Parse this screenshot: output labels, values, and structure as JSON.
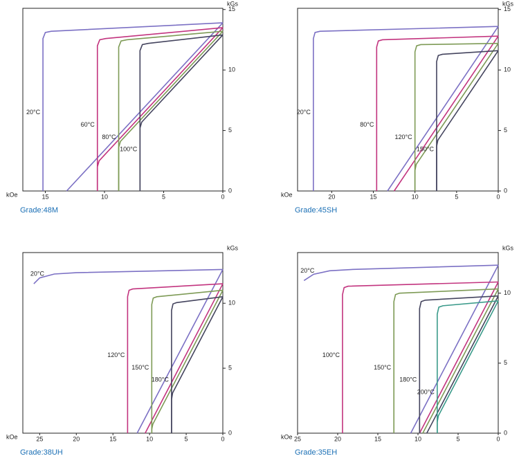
{
  "chart_data": [
    {
      "type": "line",
      "title": "Grade:48M",
      "x_label": "kOe",
      "y_label": "kGs",
      "xlim": [
        16.9,
        0
      ],
      "ylim": [
        0,
        15.1
      ],
      "xticks": [
        15,
        10,
        5,
        0
      ],
      "yticks": [
        0,
        5,
        10,
        15
      ],
      "series": [
        {
          "name": "20°C",
          "color": "#7b70c4",
          "x": [
            15.2,
            15.2,
            15.0,
            14.5,
            0
          ],
          "values": [
            0,
            12.6,
            13.1,
            13.2,
            13.9
          ],
          "b_x": [
            13.2,
            0
          ],
          "b_values": [
            0,
            13.9
          ]
        },
        {
          "name": "60°C",
          "color": "#c2337e",
          "x": [
            10.6,
            10.6,
            10.4,
            9.9,
            0
          ],
          "values": [
            0,
            12.0,
            12.5,
            12.6,
            13.5
          ],
          "b_x": [
            10.6,
            10.6,
            10.45,
            0
          ],
          "b_values": [
            0,
            2.0,
            2.5,
            13.5
          ]
        },
        {
          "name": "80°C",
          "color": "#7d9a55",
          "x": [
            8.8,
            8.8,
            8.6,
            8.1,
            0
          ],
          "values": [
            0,
            11.9,
            12.4,
            12.5,
            13.2
          ],
          "b_x": [
            8.8,
            8.8,
            8.65,
            0
          ],
          "b_values": [
            0,
            3.6,
            4.1,
            13.2
          ]
        },
        {
          "name": "100°C",
          "color": "#44445e",
          "x": [
            7.0,
            7.0,
            6.8,
            6.3,
            0
          ],
          "values": [
            0,
            11.6,
            12.1,
            12.2,
            12.9
          ],
          "b_x": [
            7.0,
            7.0,
            6.85,
            0
          ],
          "b_values": [
            0,
            5.2,
            5.7,
            12.9
          ]
        }
      ]
    },
    {
      "type": "line",
      "title": "Grade:45SH",
      "x_label": "kOe",
      "y_label": "kGs",
      "xlim": [
        24.1,
        0
      ],
      "ylim": [
        0,
        15.1
      ],
      "xticks": [
        20,
        15,
        10,
        5,
        0
      ],
      "yticks": [
        0,
        5,
        10,
        15
      ],
      "series": [
        {
          "name": "20°C",
          "color": "#7b70c4",
          "x": [
            22.2,
            22.2,
            22.0,
            21.4,
            0
          ],
          "values": [
            0,
            12.6,
            13.1,
            13.2,
            13.6
          ],
          "b_x": [
            13.3,
            0
          ],
          "b_values": [
            0,
            13.6
          ]
        },
        {
          "name": "80°C",
          "color": "#c2337e",
          "x": [
            14.6,
            14.6,
            14.4,
            13.9,
            0
          ],
          "values": [
            0,
            11.9,
            12.4,
            12.5,
            12.8
          ],
          "b_x": [
            12.5,
            0
          ],
          "b_values": [
            0,
            12.8
          ]
        },
        {
          "name": "120°C",
          "color": "#7d9a55",
          "x": [
            10.0,
            10.0,
            9.8,
            9.3,
            0
          ],
          "values": [
            0,
            11.5,
            12.0,
            12.1,
            12.2
          ],
          "b_x": [
            10.0,
            10.0,
            9.85,
            0
          ],
          "b_values": [
            0,
            1.7,
            2.2,
            12.2
          ]
        },
        {
          "name": "150°C",
          "color": "#44445e",
          "x": [
            7.4,
            7.4,
            7.2,
            6.7,
            0
          ],
          "values": [
            0,
            10.7,
            11.2,
            11.3,
            11.6
          ],
          "b_x": [
            7.4,
            7.4,
            7.25,
            0
          ],
          "b_values": [
            0,
            3.7,
            4.2,
            11.6
          ]
        }
      ]
    },
    {
      "type": "line",
      "title": "Grade:38UH",
      "x_label": "kOe",
      "y_label": "kGs",
      "xlim": [
        27.3,
        0
      ],
      "ylim": [
        0,
        13.9
      ],
      "xticks": [
        25,
        20,
        15,
        10,
        5,
        0
      ],
      "yticks": [
        0,
        5,
        10
      ],
      "series": [
        {
          "name": "20°C",
          "color": "#7b70c4",
          "x": [
            25.8,
            25,
            23,
            20,
            0
          ],
          "values": [
            11.5,
            11.95,
            12.25,
            12.35,
            12.6
          ],
          "b_x": [
            11.7,
            0
          ],
          "b_values": [
            0,
            12.6
          ]
        },
        {
          "name": "120°C",
          "color": "#c2337e",
          "x": [
            13.0,
            13.0,
            12.8,
            12.3,
            0
          ],
          "values": [
            0,
            10.5,
            11.0,
            11.1,
            11.5
          ],
          "b_x": [
            10.6,
            0
          ],
          "b_values": [
            0,
            11.5
          ]
        },
        {
          "name": "150°C",
          "color": "#7d9a55",
          "x": [
            9.7,
            9.7,
            9.5,
            9.0,
            0
          ],
          "values": [
            0,
            9.9,
            10.4,
            10.5,
            11.0
          ],
          "b_x": [
            9.7,
            9.7,
            9.55,
            0
          ],
          "b_values": [
            0,
            0.3,
            0.7,
            11.0
          ]
        },
        {
          "name": "180°C",
          "color": "#44445e",
          "x": [
            7.0,
            7.0,
            6.8,
            6.3,
            0
          ],
          "values": [
            0,
            9.45,
            9.95,
            10.05,
            10.5
          ],
          "b_x": [
            7.0,
            7.0,
            6.85,
            0
          ],
          "b_values": [
            0,
            2.6,
            3.1,
            10.5
          ]
        }
      ]
    },
    {
      "type": "line",
      "title": "Grade:35EH",
      "x_label": "kOe",
      "y_label": "kGs",
      "xlim": [
        25,
        0
      ],
      "ylim": [
        0,
        12.9
      ],
      "xticks": [
        25,
        20,
        15,
        10,
        5,
        0
      ],
      "yticks": [
        0,
        5,
        10
      ],
      "series": [
        {
          "name": "20°C",
          "color": "#7b70c4",
          "x": [
            24.2,
            23,
            21,
            18,
            0
          ],
          "values": [
            10.9,
            11.35,
            11.6,
            11.7,
            12.0
          ],
          "b_x": [
            10.9,
            0
          ],
          "b_values": [
            0,
            12.0
          ]
        },
        {
          "name": "100°C",
          "color": "#c2337e",
          "x": [
            19.4,
            19.4,
            19.2,
            18.7,
            0
          ],
          "values": [
            0,
            9.9,
            10.4,
            10.5,
            10.8
          ],
          "b_x": [
            9.8,
            0
          ],
          "b_values": [
            0,
            10.8
          ]
        },
        {
          "name": "150°C",
          "color": "#7d9a55",
          "x": [
            13.0,
            13.0,
            12.8,
            12.3,
            0
          ],
          "values": [
            0,
            9.4,
            9.9,
            10.0,
            10.3
          ],
          "b_x": [
            9.4,
            0
          ],
          "b_values": [
            0,
            10.3
          ]
        },
        {
          "name": "180°C",
          "color": "#44445e",
          "x": [
            9.8,
            9.8,
            9.6,
            9.1,
            0
          ],
          "values": [
            0,
            8.9,
            9.4,
            9.5,
            9.8
          ],
          "b_x": [
            8.9,
            0
          ],
          "b_values": [
            0,
            9.8
          ]
        },
        {
          "name": "200°C",
          "color": "#3a9a8a",
          "x": [
            7.6,
            7.6,
            7.4,
            6.9,
            0
          ],
          "values": [
            0,
            8.5,
            9.0,
            9.1,
            9.45
          ],
          "b_x": [
            7.6,
            7.6,
            7.45,
            0
          ],
          "b_values": [
            0,
            0.8,
            1.25,
            9.45
          ]
        }
      ]
    }
  ]
}
